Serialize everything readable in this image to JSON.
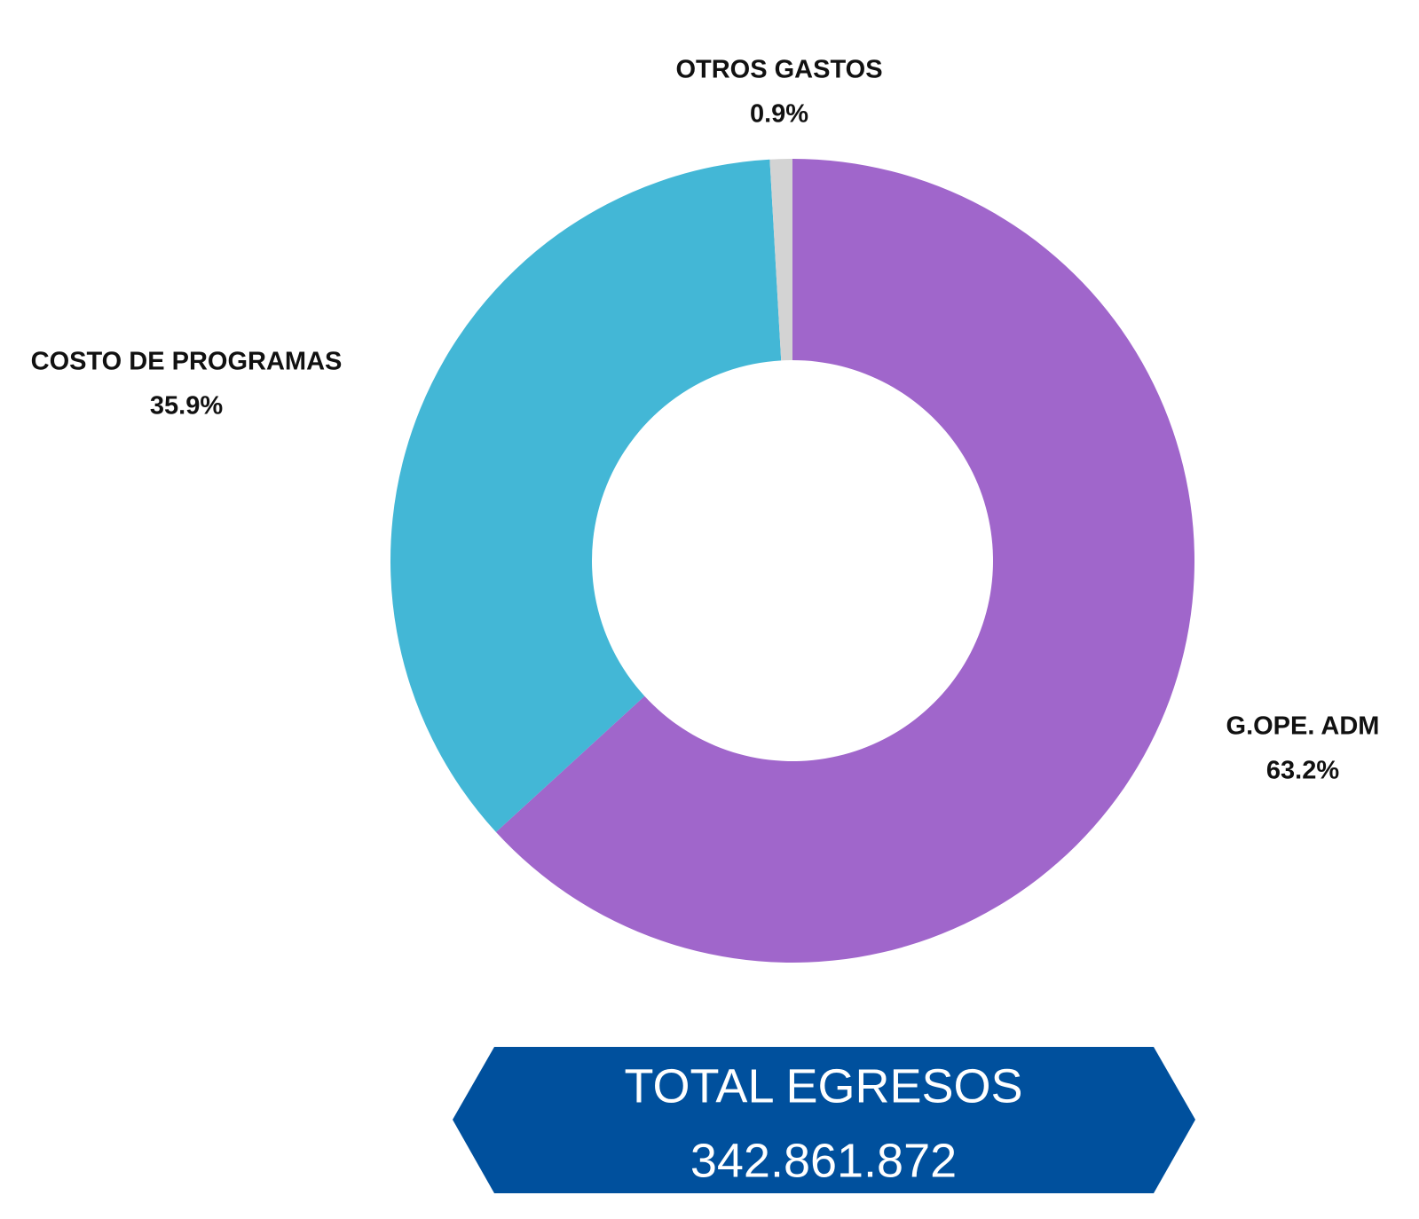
{
  "chart_data": {
    "type": "pie",
    "donut": true,
    "categories": [
      "G.OPE. ADM",
      "COSTO DE PROGRAMAS",
      "OTROS GASTOS"
    ],
    "values": [
      63.2,
      35.9,
      0.9
    ],
    "value_labels": [
      "63.2%",
      "35.9%",
      "0.9%"
    ],
    "colors": [
      "#a066cb",
      "#43b7d6",
      "#d3d3d3"
    ],
    "total_title": "TOTAL EGRESOS",
    "total": {
      "value": 342861872,
      "label": "342.861.872"
    }
  }
}
